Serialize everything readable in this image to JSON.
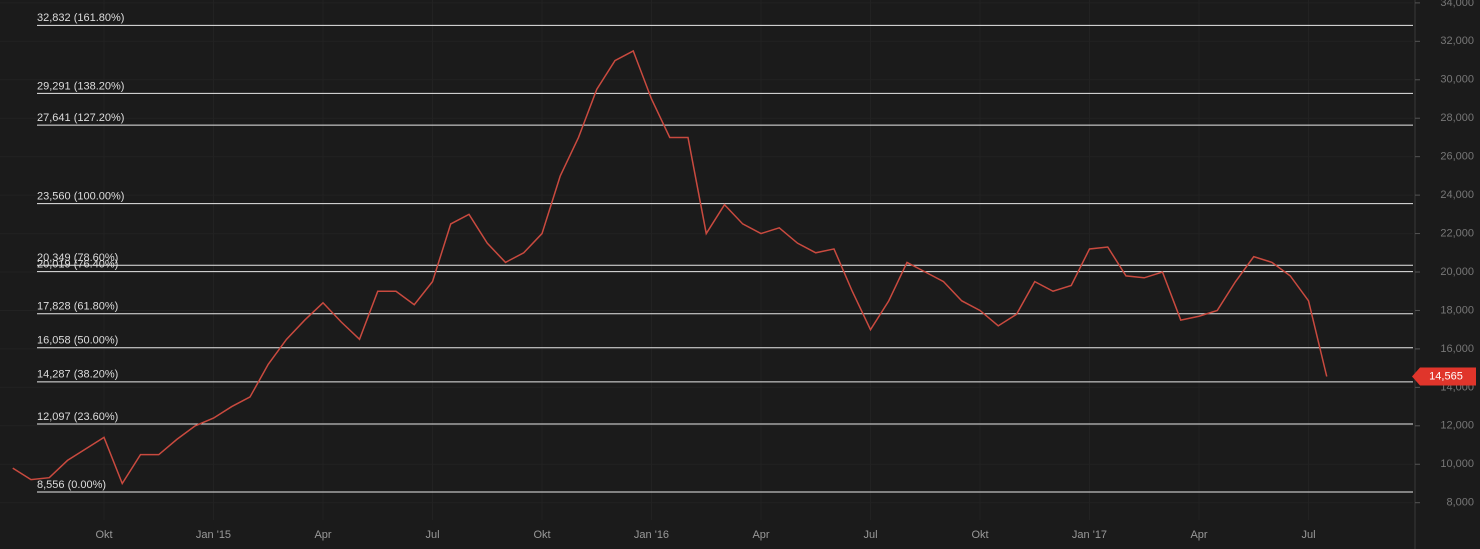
{
  "chart_data": {
    "type": "line",
    "categories": [
      null,
      null,
      null,
      null,
      null,
      "Okt",
      null,
      null,
      null,
      null,
      null,
      "Jan '15",
      null,
      null,
      null,
      null,
      null,
      "Apr",
      null,
      null,
      null,
      null,
      null,
      "Jul",
      null,
      null,
      null,
      null,
      null,
      "Okt",
      null,
      null,
      null,
      null,
      null,
      "Jan '16",
      null,
      null,
      null,
      null,
      null,
      "Apr",
      null,
      null,
      null,
      null,
      null,
      "Jul",
      null,
      null,
      null,
      null,
      null,
      "Okt",
      null,
      null,
      null,
      null,
      null,
      "Jan '17",
      null,
      null,
      null,
      null,
      null,
      "Apr",
      null,
      null,
      null,
      null,
      null,
      "Jul",
      null
    ],
    "series": [
      {
        "color": "#c94a3f",
        "values": [
          9800,
          9200,
          9300,
          10200,
          10800,
          11400,
          9000,
          10500,
          10500,
          11300,
          12000,
          12400,
          13000,
          13500,
          15200,
          16500,
          17500,
          18400,
          17400,
          16500,
          19000,
          19000,
          18300,
          19500,
          22500,
          23000,
          21500,
          20500,
          21000,
          22000,
          25000,
          27000,
          29500,
          31000,
          31500,
          29000,
          27000,
          27000,
          22000,
          23500,
          22500,
          22000,
          22300,
          21500,
          21000,
          21200,
          19000,
          17000,
          18500,
          20500,
          20000,
          19500,
          18500,
          18000,
          17200,
          17800,
          19500,
          19000,
          19300,
          21200,
          21300,
          19800,
          19700,
          20000,
          17500,
          17700,
          18000,
          19500,
          20800,
          20500,
          19800,
          18500,
          14565
        ]
      }
    ],
    "ylim": [
      7100,
      34150
    ],
    "yticks": [
      {
        "value": 8000,
        "label": "8,000"
      },
      {
        "value": 10000,
        "label": "10,000"
      },
      {
        "value": 12000,
        "label": "12,000"
      },
      {
        "value": 14000,
        "label": "14,000"
      },
      {
        "value": 16000,
        "label": "16,000"
      },
      {
        "value": 18000,
        "label": "18,000"
      },
      {
        "value": 20000,
        "label": "20,000"
      },
      {
        "value": 22000,
        "label": "22,000"
      },
      {
        "value": 24000,
        "label": "24,000"
      },
      {
        "value": 26000,
        "label": "26,000"
      },
      {
        "value": 28000,
        "label": "28,000"
      },
      {
        "value": 30000,
        "label": "30,000"
      },
      {
        "value": 32000,
        "label": "32,000"
      },
      {
        "value": 34000,
        "label": "34,000"
      }
    ],
    "fib_levels": [
      {
        "value": 32832,
        "label": "32,832 (161.80%)"
      },
      {
        "value": 29291,
        "label": "29,291 (138.20%)"
      },
      {
        "value": 27641,
        "label": "27,641 (127.20%)"
      },
      {
        "value": 23560,
        "label": "23,560 (100.00%)"
      },
      {
        "value": 20349,
        "label": "20,349 (78.60%)"
      },
      {
        "value": 20019,
        "label": "20,019 (76.40%)"
      },
      {
        "value": 17828,
        "label": "17,828 (61.80%)"
      },
      {
        "value": 16058,
        "label": "16,058 (50.00%)"
      },
      {
        "value": 14287,
        "label": "14,287 (38.20%)"
      },
      {
        "value": 12097,
        "label": "12,097 (23.60%)"
      },
      {
        "value": 8556,
        "label": "8,556 (0.00%)"
      }
    ],
    "last_price": {
      "value": 14565,
      "label": "14,565"
    },
    "grid": true
  }
}
